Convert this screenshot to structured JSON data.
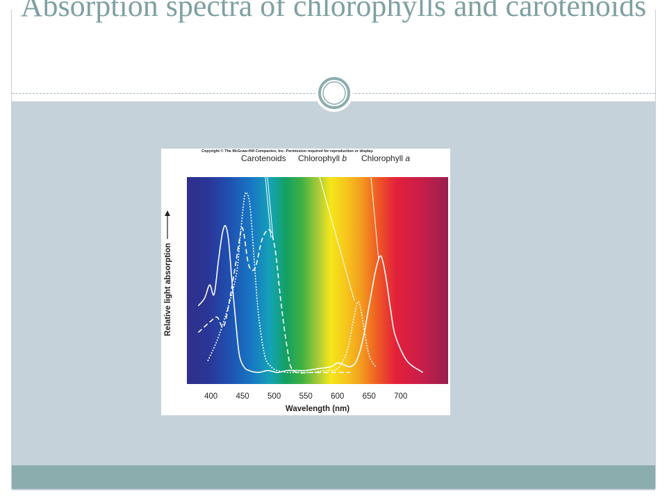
{
  "slide": {
    "title": "Absorption spectra of chlorophylls and carotenoids"
  },
  "colors": {
    "title": "#7ea0a2",
    "content_background": "#c6d2d9",
    "footer_bar": "#8cadad"
  },
  "chart_data": {
    "type": "line",
    "copyright": "Copyright © The McGraw-Hill Companies, Inc. Permission required for reproduction or display.",
    "xlabel": "Wavelength (nm)",
    "ylabel": "Relative light absorption",
    "xlim": [
      362,
      775
    ],
    "ylim": [
      0,
      1
    ],
    "xticks": [
      "400",
      "450",
      "500",
      "550",
      "600",
      "650",
      "700"
    ],
    "grid": false,
    "background": "visible light spectrum gradient",
    "series": [
      {
        "name": "Chlorophyll a",
        "style": "solid",
        "x": [
          380,
          390,
          398,
          405,
          412,
          418,
          423,
          428,
          433,
          440,
          445,
          452,
          460,
          475,
          490,
          505,
          520,
          535,
          550,
          570,
          590,
          600,
          610,
          620,
          630,
          640,
          650,
          660,
          667,
          672,
          678,
          684,
          690,
          700,
          710,
          720,
          730,
          735
        ],
        "y": [
          0.36,
          0.4,
          0.47,
          0.42,
          0.6,
          0.74,
          0.78,
          0.7,
          0.5,
          0.25,
          0.1,
          0.04,
          0.02,
          0.01,
          0.02,
          0.01,
          0.02,
          0.02,
          0.02,
          0.03,
          0.04,
          0.06,
          0.05,
          0.04,
          0.07,
          0.18,
          0.36,
          0.54,
          0.62,
          0.59,
          0.48,
          0.34,
          0.22,
          0.13,
          0.07,
          0.04,
          0.02,
          0.01
        ]
      },
      {
        "name": "Chlorophyll b",
        "style": "dotted",
        "x": [
          395,
          410,
          425,
          440,
          447,
          453,
          457,
          462,
          468,
          475,
          485,
          495,
          505,
          520,
          540,
          560,
          580,
          600,
          615,
          625,
          632,
          637,
          642,
          650,
          660
        ],
        "y": [
          0.07,
          0.18,
          0.33,
          0.52,
          0.75,
          0.93,
          0.95,
          0.88,
          0.62,
          0.32,
          0.1,
          0.04,
          0.02,
          0.01,
          0.01,
          0.01,
          0.02,
          0.03,
          0.12,
          0.28,
          0.38,
          0.34,
          0.24,
          0.1,
          0.04
        ]
      },
      {
        "name": "Carotenoids",
        "style": "dashed",
        "x": [
          380,
          400,
          410,
          420,
          430,
          440,
          448,
          452,
          458,
          463,
          468,
          472,
          480,
          487,
          492,
          497,
          503,
          510,
          520,
          530,
          560,
          600,
          620
        ],
        "y": [
          0.22,
          0.28,
          0.3,
          0.25,
          0.4,
          0.6,
          0.76,
          0.74,
          0.6,
          0.55,
          0.55,
          0.58,
          0.7,
          0.75,
          0.76,
          0.73,
          0.62,
          0.4,
          0.15,
          0.02,
          0.01,
          0.01,
          0.01
        ]
      }
    ]
  }
}
